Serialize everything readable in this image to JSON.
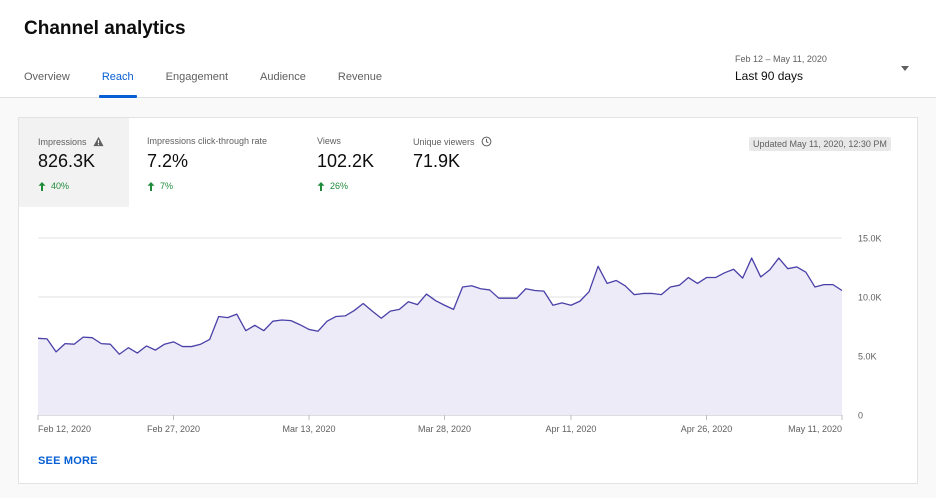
{
  "header": {
    "title": "Channel analytics"
  },
  "tabs": [
    {
      "label": "Overview"
    },
    {
      "label": "Reach"
    },
    {
      "label": "Engagement"
    },
    {
      "label": "Audience"
    },
    {
      "label": "Revenue"
    }
  ],
  "active_tab": "Reach",
  "date_range": {
    "range_text": "Feb 12 – May 11, 2020",
    "label": "Last 90 days"
  },
  "metrics": [
    {
      "label": "Impressions",
      "value": "826.3K",
      "delta": "40%",
      "icon": "warning-icon"
    },
    {
      "label": "Impressions click-through rate",
      "value": "7.2%",
      "delta": "7%"
    },
    {
      "label": "Views",
      "value": "102.2K",
      "delta": "26%"
    },
    {
      "label": "Unique viewers",
      "value": "71.9K",
      "icon": "clock-icon"
    }
  ],
  "updated": "Updated May 11, 2020, 12:30 PM",
  "see_more": "SEE MORE",
  "colors": {
    "accent": "#065fd4",
    "line": "#4a40a8",
    "fill": "#ecebf7",
    "positive": "#208b3a"
  },
  "chart_data": {
    "type": "area",
    "series": [
      {
        "metric": "Impressions",
        "values": [
          6500,
          6450,
          5350,
          6050,
          6000,
          6600,
          6550,
          6050,
          6000,
          5150,
          5700,
          5250,
          5850,
          5500,
          6000,
          6200,
          5800,
          5800,
          6000,
          6400,
          8350,
          8250,
          8550,
          7150,
          7600,
          7150,
          7950,
          8050,
          8000,
          7650,
          7250,
          7100,
          7950,
          8350,
          8400,
          8850,
          9450,
          8800,
          8200,
          8800,
          8950,
          9600,
          9350,
          10250,
          9700,
          9300,
          8950,
          10850,
          10950,
          10700,
          10600,
          9900,
          9900,
          9900,
          10700,
          10550,
          10500,
          9300,
          9500,
          9300,
          9650,
          10450,
          12600,
          11150,
          11400,
          10950,
          10200,
          10300,
          10300,
          10200,
          10850,
          11000,
          11650,
          11150,
          11650,
          11650,
          12050,
          12350,
          11600,
          13300,
          11700,
          12300,
          13300,
          12400,
          12550,
          12100,
          10850,
          11050,
          11050,
          10550
        ]
      }
    ],
    "x_tick_labels": [
      "Feb 12, 2020",
      "Feb 27, 2020",
      "Mar 13, 2020",
      "Mar 28, 2020",
      "Apr 11, 2020",
      "Apr 26, 2020",
      "May 11, 2020"
    ],
    "x_tick_day_index": [
      0,
      15,
      30,
      45,
      59,
      74,
      89
    ],
    "y_tick_labels": [
      "15.0K",
      "10.0K",
      "5.0K",
      "0"
    ],
    "y_tick_values": [
      15000,
      10000,
      5000,
      0
    ],
    "ylim": [
      0,
      15000
    ],
    "grid": true
  }
}
